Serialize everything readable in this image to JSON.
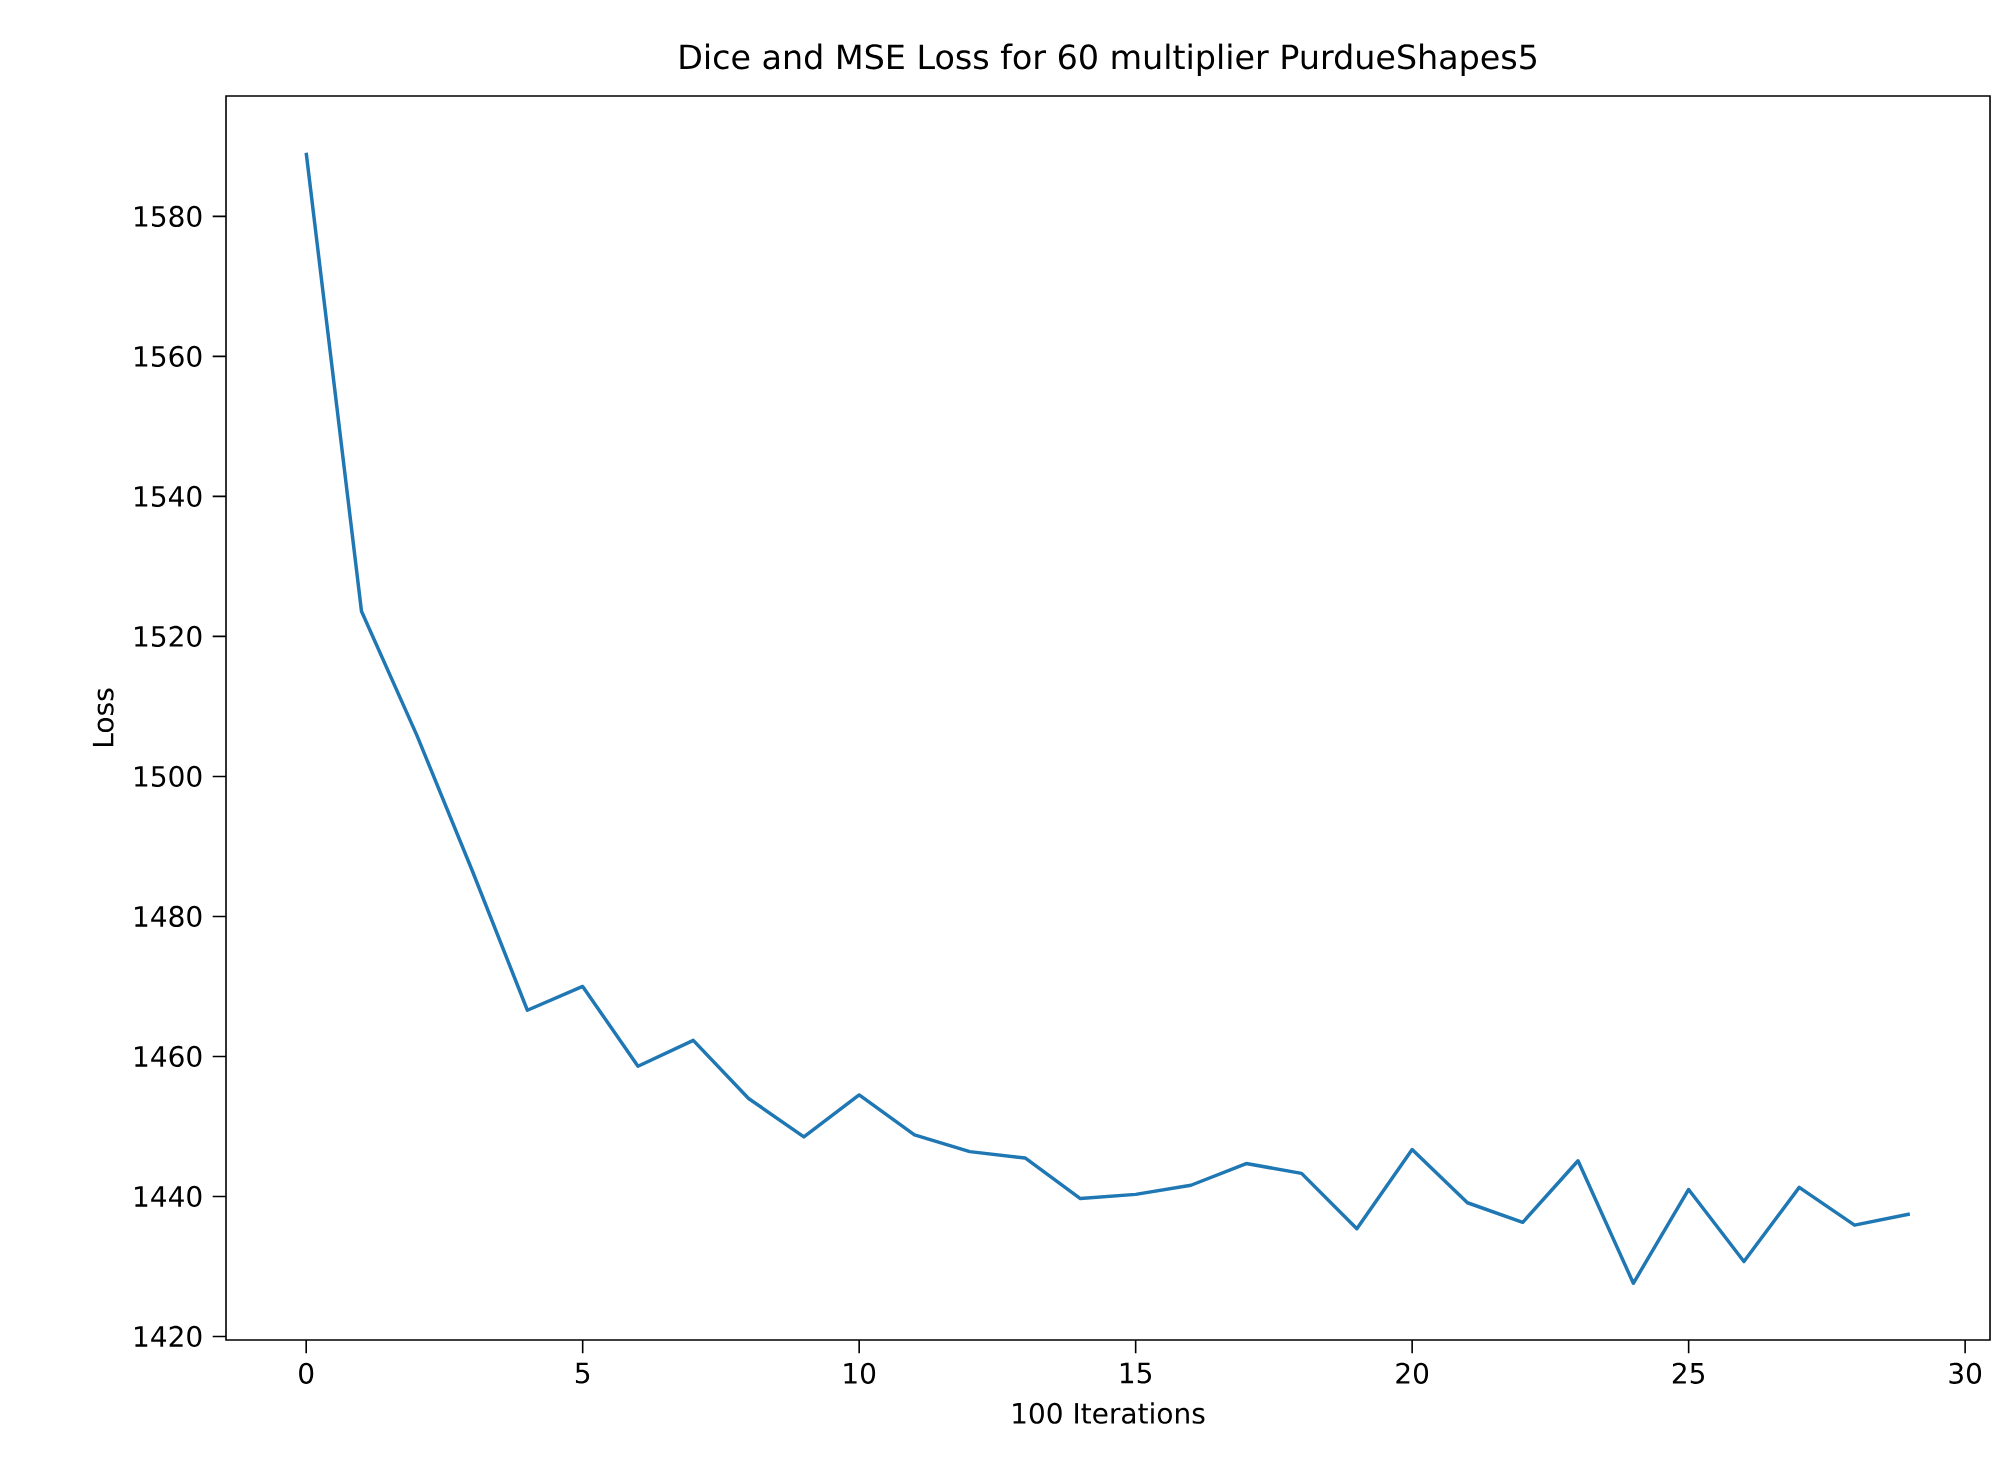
{
  "chart_data": {
    "type": "line",
    "title": "Dice and MSE Loss for 60 multiplier PurdueShapes5",
    "xlabel": "100 Iterations",
    "ylabel": "Loss",
    "x": [
      0,
      1,
      2,
      3,
      4,
      5,
      6,
      7,
      8,
      9,
      10,
      11,
      12,
      13,
      14,
      15,
      16,
      17,
      18,
      19,
      20,
      21,
      22,
      23,
      24,
      25,
      26,
      27,
      28,
      29
    ],
    "series": [
      {
        "color": "#1f77b4",
        "values": [
          1589.1,
          1523.6,
          1505.9,
          1486.6,
          1466.6,
          1470.0,
          1458.6,
          1462.3,
          1454.0,
          1448.5,
          1454.5,
          1448.8,
          1446.4,
          1445.5,
          1439.7,
          1440.3,
          1441.6,
          1444.7,
          1443.3,
          1435.4,
          1446.7,
          1439.1,
          1436.3,
          1445.1,
          1427.6,
          1441.0,
          1430.7,
          1441.3,
          1435.9,
          1437.5
        ]
      }
    ],
    "xlim": [
      -1.45,
      30.45
    ],
    "ylim": [
      1419.5,
      1597.2
    ],
    "xticks": [
      0,
      5,
      10,
      15,
      20,
      25,
      30
    ],
    "yticks": [
      1420,
      1440,
      1460,
      1480,
      1500,
      1520,
      1540,
      1560,
      1580
    ]
  }
}
